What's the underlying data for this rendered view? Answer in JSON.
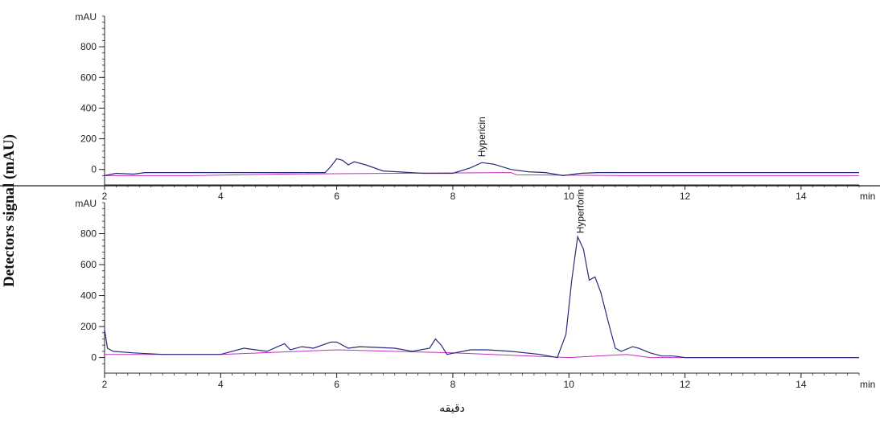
{
  "ylabel_main": "Detectors signal (mAU)",
  "xlabel_main": "دقيقه",
  "colors": {
    "trace": "#2a2a7a",
    "baseline": "#c030c0",
    "axis": "#222222"
  },
  "chart_data": [
    {
      "type": "line",
      "ylabel": "mAU",
      "xlabel": "min",
      "xlim": [
        2,
        15
      ],
      "ylim": [
        -80,
        1000
      ],
      "x_ticks": [
        2,
        4,
        6,
        8,
        10,
        12,
        14
      ],
      "y_ticks": [
        0,
        200,
        400,
        600,
        800
      ],
      "annotations": [
        {
          "text": "Hypericin",
          "x": 8.5,
          "y": 50
        }
      ],
      "series": [
        {
          "x": [
            2,
            2.2,
            2.5,
            2.7,
            2.8,
            3.5,
            4,
            5,
            5.8,
            5.9,
            6.0,
            6.1,
            6.2,
            6.3,
            6.5,
            6.8,
            7.5,
            8.0,
            8.3,
            8.5,
            8.7,
            9.0,
            9.3,
            9.6,
            9.9,
            10.2,
            10.5,
            11,
            12,
            13,
            14,
            15
          ],
          "y": [
            -40,
            -25,
            -30,
            -20,
            -20,
            -20,
            -20,
            -20,
            -20,
            20,
            70,
            60,
            30,
            50,
            30,
            -10,
            -25,
            -25,
            10,
            45,
            35,
            0,
            -15,
            -20,
            -40,
            -25,
            -20,
            -20,
            -20,
            -20,
            -20,
            -20
          ]
        }
      ],
      "baseline": {
        "x": [
          2,
          3.5,
          5,
          9.0,
          9.1,
          11,
          15
        ],
        "y": [
          -40,
          -40,
          -30,
          -20,
          -35,
          -40,
          -40
        ]
      }
    },
    {
      "type": "line",
      "ylabel": "mAU",
      "xlabel": "min",
      "xlim": [
        2,
        15
      ],
      "ylim": [
        -80,
        1000
      ],
      "x_ticks": [
        2,
        4,
        6,
        8,
        10,
        12,
        14
      ],
      "y_ticks": [
        0,
        200,
        400,
        600,
        800
      ],
      "annotations": [
        {
          "text": "Hyperforin",
          "x": 10.2,
          "y": 770
        }
      ],
      "series": [
        {
          "x": [
            2,
            2.05,
            2.15,
            2.5,
            3,
            4,
            4.4,
            4.8,
            5.1,
            5.2,
            5.4,
            5.6,
            5.9,
            6.0,
            6.2,
            6.4,
            7.0,
            7.3,
            7.6,
            7.7,
            7.8,
            7.9,
            8.3,
            8.6,
            9.0,
            9.5,
            9.8,
            9.95,
            10.05,
            10.15,
            10.25,
            10.35,
            10.45,
            10.55,
            10.7,
            10.8,
            10.9,
            11.1,
            11.2,
            11.4,
            11.6,
            11.8,
            12,
            15
          ],
          "y": [
            180,
            60,
            40,
            30,
            20,
            20,
            60,
            40,
            90,
            50,
            70,
            60,
            100,
            100,
            60,
            70,
            60,
            40,
            60,
            120,
            80,
            20,
            50,
            50,
            40,
            20,
            0,
            150,
            500,
            780,
            700,
            500,
            520,
            420,
            200,
            60,
            40,
            70,
            60,
            30,
            10,
            10,
            0,
            0
          ]
        }
      ],
      "baseline": {
        "x": [
          2,
          4,
          6,
          8,
          10,
          11,
          11.4,
          15
        ],
        "y": [
          20,
          20,
          50,
          30,
          0,
          20,
          0,
          0
        ]
      }
    }
  ]
}
